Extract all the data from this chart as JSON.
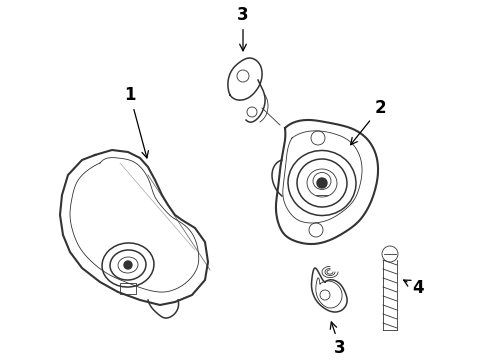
{
  "background_color": "#ffffff",
  "line_color": "#333333",
  "label_color": "#000000",
  "lw_main": 1.1,
  "lw_thin": 0.6,
  "lw_thick": 1.5
}
